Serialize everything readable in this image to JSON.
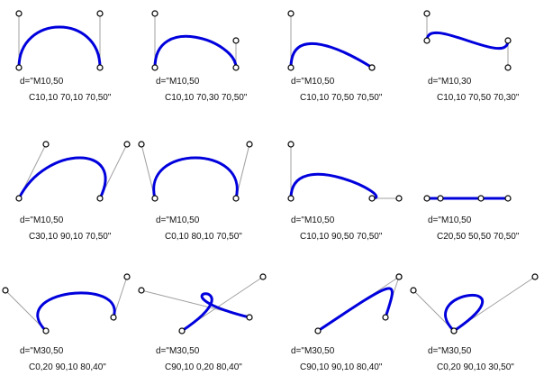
{
  "colors": {
    "curve": "#0000dd",
    "guide": "#a0a0a0",
    "point_stroke": "#000000",
    "point_fill": "#ffffff",
    "text": "#111111"
  },
  "panels": [
    {
      "line1": "d=\"M10,50",
      "line2": "C10,10 70,10 70,50\"",
      "start": [
        10,
        50
      ],
      "c1": [
        10,
        10
      ],
      "c2": [
        70,
        10
      ],
      "end": [
        70,
        50
      ]
    },
    {
      "line1": "d=\"M10,50",
      "line2": "C10,10 70,30 70,50\"",
      "start": [
        10,
        50
      ],
      "c1": [
        10,
        10
      ],
      "c2": [
        70,
        30
      ],
      "end": [
        70,
        50
      ]
    },
    {
      "line1": "d=\"M10,50",
      "line2": "C10,10 70,50 70,50\"",
      "start": [
        10,
        50
      ],
      "c1": [
        10,
        10
      ],
      "c2": [
        70,
        50
      ],
      "end": [
        70,
        50
      ]
    },
    {
      "line1": "d=\"M10,30",
      "line2": "C10,10 70,50 70,30\"",
      "start": [
        10,
        30
      ],
      "c1": [
        10,
        10
      ],
      "c2": [
        70,
        50
      ],
      "end": [
        70,
        30
      ]
    },
    {
      "line1": "d=\"M10,50",
      "line2": "C30,10 90,10 70,50\"",
      "start": [
        10,
        50
      ],
      "c1": [
        30,
        10
      ],
      "c2": [
        90,
        10
      ],
      "end": [
        70,
        50
      ]
    },
    {
      "line1": "d=\"M10,50",
      "line2": "C0,10 80,10 70,50\"",
      "start": [
        10,
        50
      ],
      "c1": [
        0,
        10
      ],
      "c2": [
        80,
        10
      ],
      "end": [
        70,
        50
      ]
    },
    {
      "line1": "d=\"M10,50",
      "line2": "C10,10 90,50 70,50\"",
      "start": [
        10,
        50
      ],
      "c1": [
        10,
        10
      ],
      "c2": [
        90,
        50
      ],
      "end": [
        70,
        50
      ]
    },
    {
      "line1": "d=\"M10,50",
      "line2": "C20,50 50,50 70,50\"",
      "start": [
        10,
        50
      ],
      "c1": [
        20,
        50
      ],
      "c2": [
        50,
        50
      ],
      "end": [
        70,
        50
      ]
    },
    {
      "line1": "d=\"M30,50",
      "line2": "C0,20 90,10 80,40\"",
      "start": [
        30,
        50
      ],
      "c1": [
        0,
        20
      ],
      "c2": [
        90,
        10
      ],
      "end": [
        80,
        40
      ]
    },
    {
      "line1": "d=\"M30,50",
      "line2": "C90,10 0,20 80,40\"",
      "start": [
        30,
        50
      ],
      "c1": [
        90,
        10
      ],
      "c2": [
        0,
        20
      ],
      "end": [
        80,
        40
      ]
    },
    {
      "line1": "d=\"M30,50",
      "line2": "C90,10 90,10 80,40\"",
      "start": [
        30,
        50
      ],
      "c1": [
        90,
        10
      ],
      "c2": [
        90,
        10
      ],
      "end": [
        80,
        40
      ]
    },
    {
      "line1": "d=\"M30,50",
      "line2": "C0,20 90,10 30,50\"",
      "start": [
        30,
        50
      ],
      "c1": [
        0,
        20
      ],
      "c2": [
        90,
        10
      ],
      "end": [
        30,
        50
      ]
    }
  ]
}
